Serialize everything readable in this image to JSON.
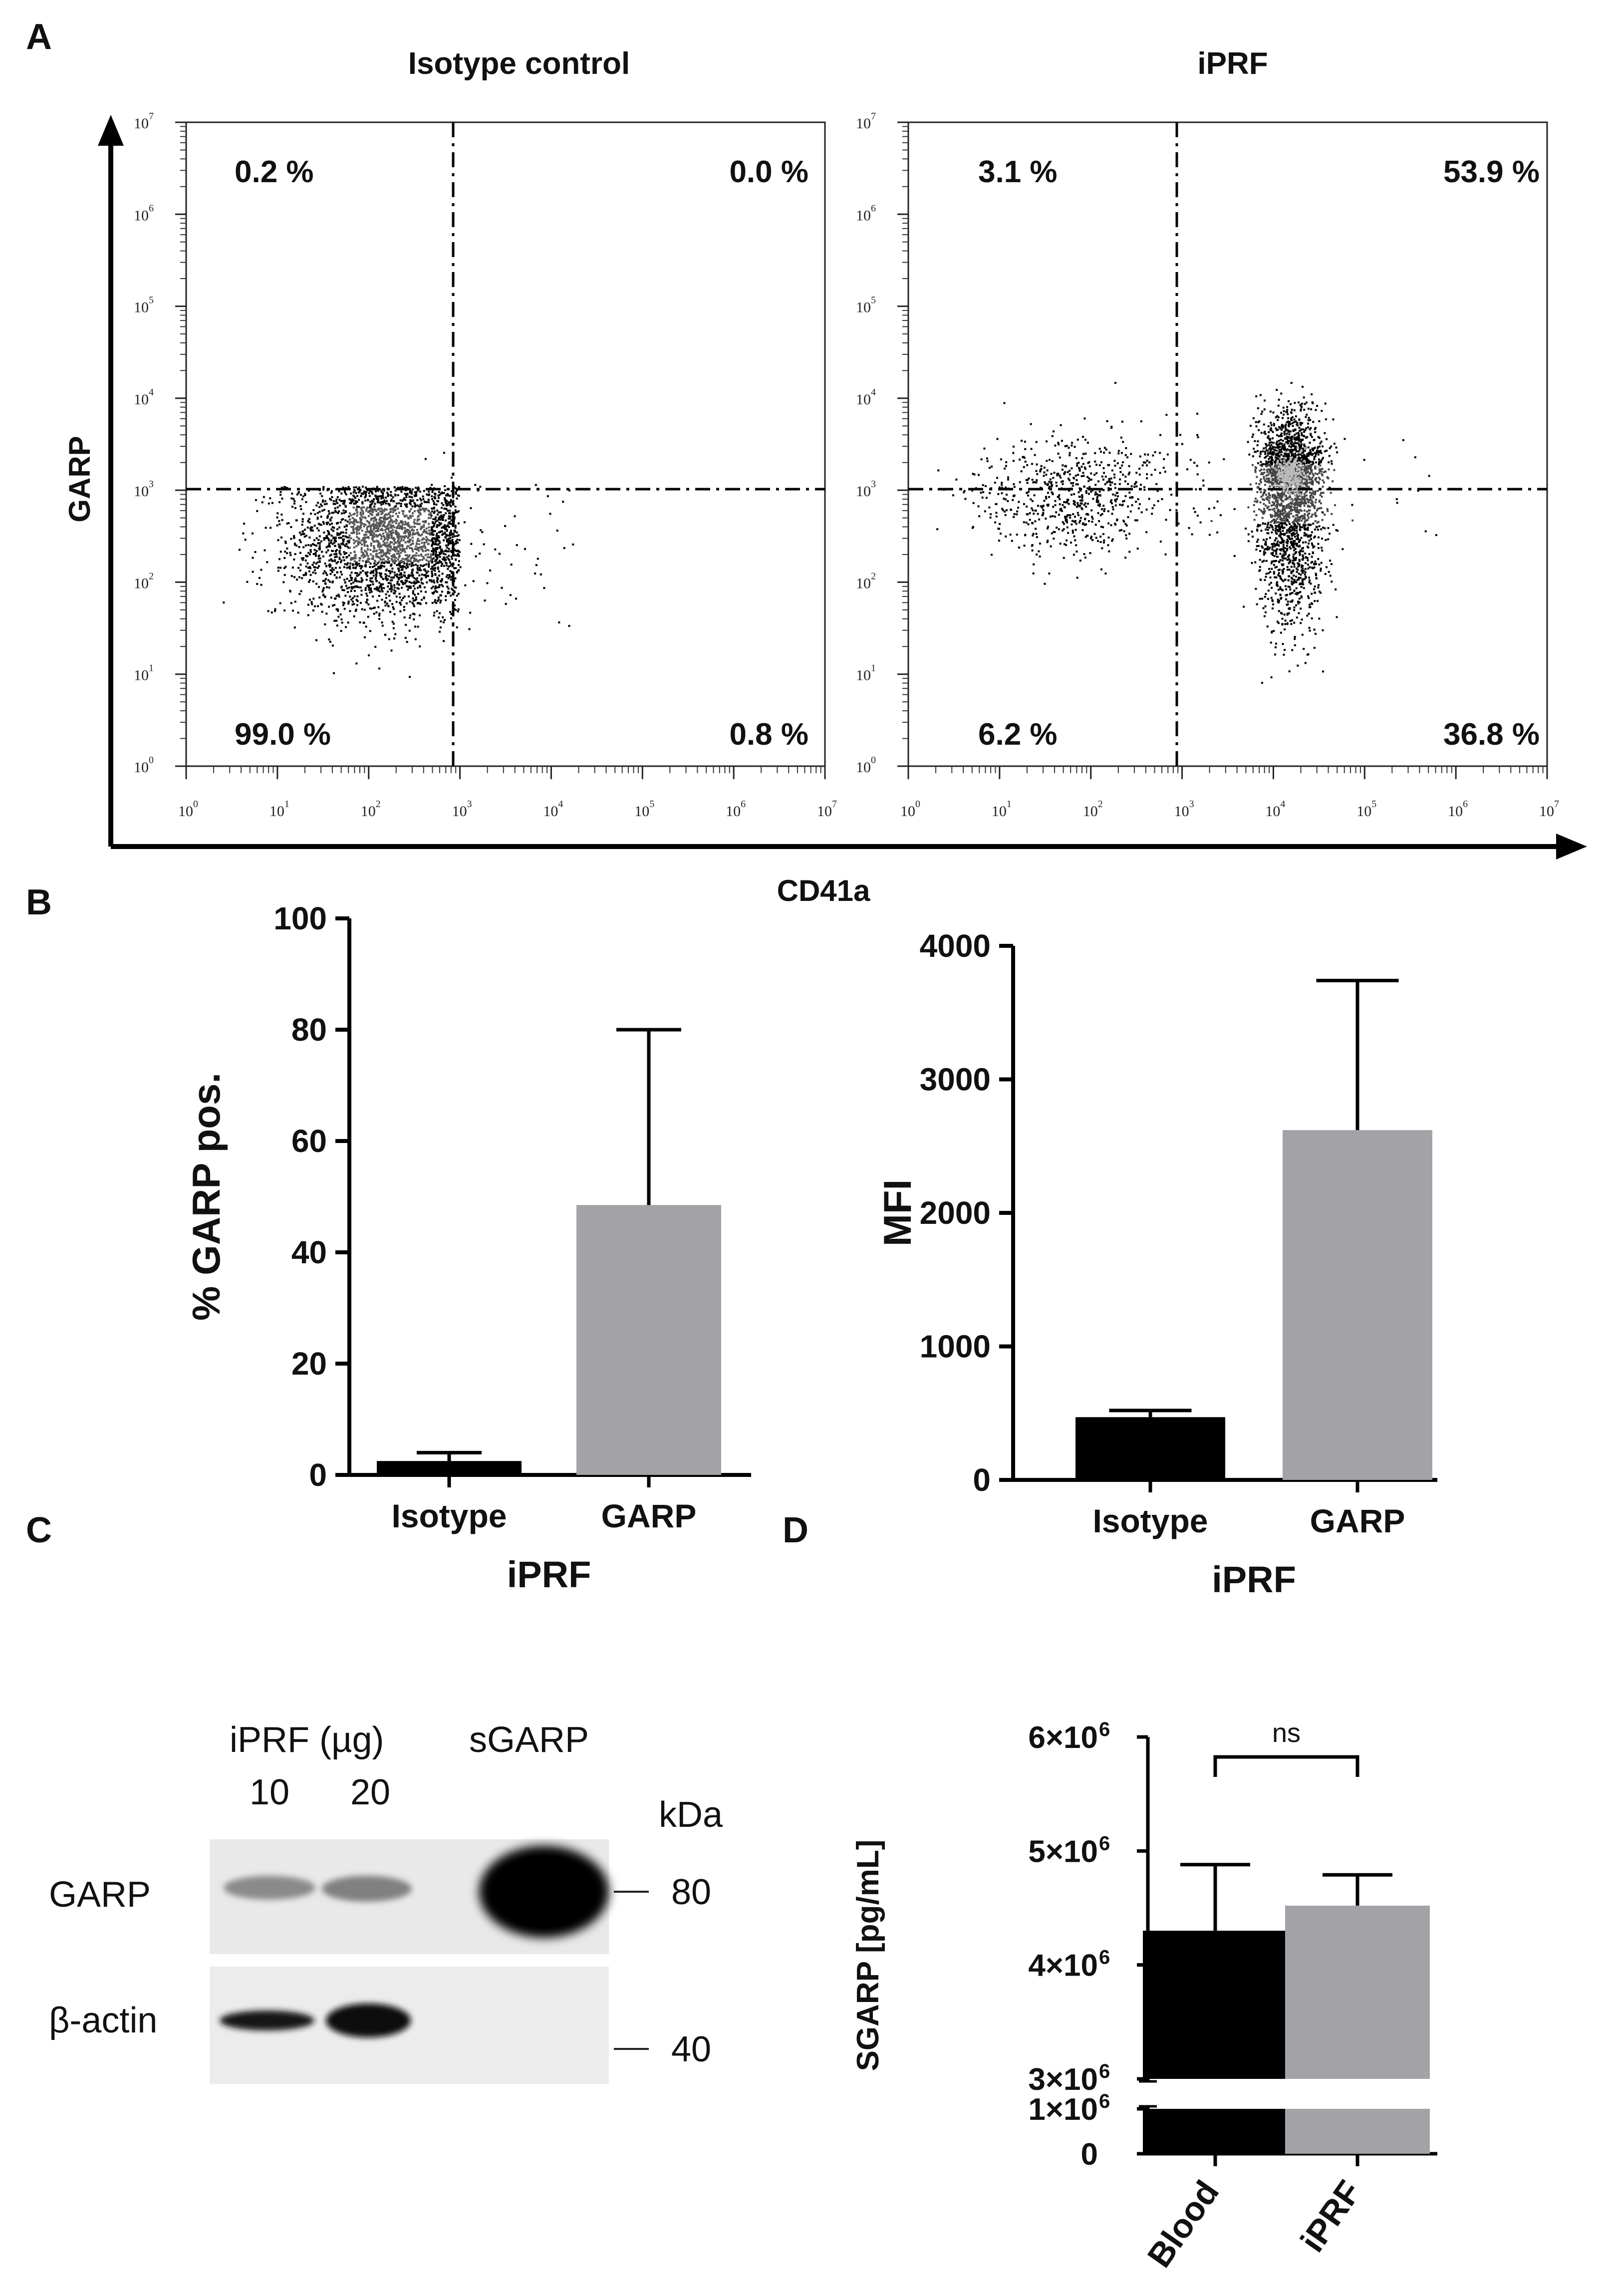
{
  "panels": {
    "a": "A",
    "b": "B",
    "c": "C",
    "d": "D"
  },
  "panel_a": {
    "y_label": "GARP",
    "x_label": "CD41a",
    "left_title": "Isotype control",
    "right_title": "iPRF",
    "ticks": [
      "10",
      "10",
      "10",
      "10",
      "10",
      "10",
      "10",
      "10"
    ],
    "exponents": [
      "0",
      "1",
      "2",
      "3",
      "4",
      "5",
      "6",
      "7"
    ],
    "left_quadrants": {
      "ul": "0.2 %",
      "ur": "0.0 %",
      "ll": "99.0 %",
      "lr": "0.8 %"
    },
    "right_quadrants": {
      "ul": "3.1 %",
      "ur": "53.9 %",
      "ll": "6.2 %",
      "lr": "36.8 %"
    }
  },
  "panel_c": {
    "header_sample": "iPRF (µg)",
    "header_std": "sGARP",
    "lane_a": "10",
    "lane_b": "20",
    "unit": "kDa",
    "row_1": "GARP",
    "row_2": "β-actin",
    "marker_1": "80",
    "marker_2": "40"
  },
  "colors": {
    "black_bar": "#000000",
    "grey_bar": "#a3a3a7",
    "axis": "#000000"
  },
  "chart_data": [
    {
      "type": "scatter",
      "panel": "A-left",
      "title": "Isotype control",
      "xlabel": "CD41a",
      "ylabel": "GARP",
      "xscale": "log",
      "yscale": "log",
      "xlim": [
        1,
        10000000
      ],
      "ylim": [
        1,
        10000000
      ],
      "gates": {
        "x": 1000,
        "y": 1450
      },
      "quadrants": {
        "upper_left": 0.2,
        "upper_right": 0.0,
        "lower_left": 99.0,
        "lower_right": 0.8
      },
      "populations": [
        {
          "name": "main",
          "center_x": 150,
          "center_y": 300
        }
      ]
    },
    {
      "type": "scatter",
      "panel": "A-right",
      "title": "iPRF",
      "xlabel": "CD41a",
      "ylabel": "GARP",
      "xscale": "log",
      "yscale": "log",
      "xlim": [
        1,
        10000000
      ],
      "ylim": [
        1,
        10000000
      ],
      "gates": {
        "x": 900,
        "y": 1450
      },
      "quadrants": {
        "upper_left": 3.1,
        "upper_right": 53.9,
        "lower_left": 6.2,
        "lower_right": 36.8
      },
      "populations": [
        {
          "name": "dim",
          "center_x": 60,
          "center_y": 900
        },
        {
          "name": "platelets",
          "center_x": 15000,
          "center_y": 1200
        }
      ]
    },
    {
      "type": "bar",
      "panel": "B-left",
      "categories": [
        "Isotype",
        "GARP"
      ],
      "values": [
        2.5,
        48.5
      ],
      "errors": [
        1.5,
        31.5
      ],
      "xlabel": "iPRF",
      "ylabel": "% GARP pos.",
      "ylim": [
        0,
        100
      ],
      "yticks": [
        "0",
        "20",
        "40",
        "60",
        "80",
        "100"
      ]
    },
    {
      "type": "bar",
      "panel": "B-right",
      "categories": [
        "Isotype",
        "GARP"
      ],
      "values": [
        470,
        2620
      ],
      "errors": [
        50,
        1120
      ],
      "xlabel": "iPRF",
      "ylabel": "MFI",
      "ylim": [
        0,
        4000
      ],
      "yticks": [
        "0",
        "1000",
        "2000",
        "3000",
        "4000"
      ]
    },
    {
      "type": "bar",
      "panel": "D",
      "categories": [
        "Blood",
        "iPRF"
      ],
      "values": [
        4300000,
        4520000
      ],
      "errors": [
        580000,
        270000
      ],
      "ylabel": "SGARP [pg/mL]",
      "ylim": [
        0,
        6000000
      ],
      "axis_break": [
        1000000,
        3000000
      ],
      "yticks": [
        "6×10",
        "5×10",
        "4×10",
        "3×10",
        "1×10",
        "0"
      ],
      "ytick_exponent": "6",
      "significance": "ns"
    }
  ]
}
